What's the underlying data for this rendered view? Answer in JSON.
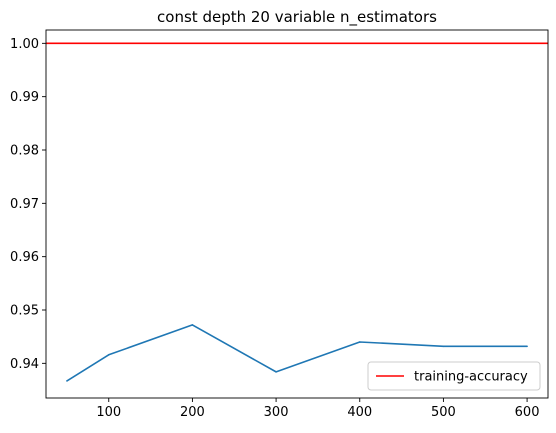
{
  "chart_data": {
    "type": "line",
    "title": "const depth 20  variable n_estimators",
    "xlabel": "",
    "ylabel": "",
    "xlim": [
      25,
      625
    ],
    "ylim": [
      0.9335,
      1.0025
    ],
    "x_ticks": [
      100,
      200,
      300,
      400,
      500,
      600
    ],
    "x_tick_labels": [
      "100",
      "200",
      "300",
      "400",
      "500",
      "600"
    ],
    "y_ticks": [
      0.94,
      0.95,
      0.96,
      0.97,
      0.98,
      0.99,
      1.0
    ],
    "y_tick_labels": [
      "0.94",
      "0.95",
      "0.96",
      "0.97",
      "0.98",
      "0.99",
      "1.00"
    ],
    "grid": false,
    "legend_position": "lower-right",
    "series": [
      {
        "kind": "line",
        "color": "#1f77b4",
        "x": [
          50,
          100,
          200,
          300,
          400,
          500,
          600
        ],
        "y": [
          0.9367,
          0.9416,
          0.9472,
          0.9384,
          0.944,
          0.9432,
          0.9432
        ]
      },
      {
        "kind": "hline",
        "name": "training-accuracy",
        "color": "#ff0000",
        "y": 1.0
      }
    ]
  }
}
